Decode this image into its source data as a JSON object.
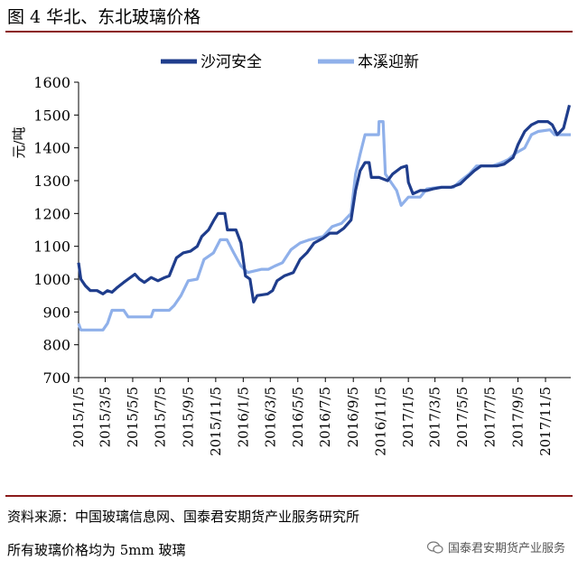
{
  "figure": {
    "title": "图 4 华北、东北玻璃价格",
    "source_note": "资料来源：中国玻璃信息网、国泰君安期货产业服务研究所",
    "spec_note": "所有玻璃价格均为 5mm 玻璃",
    "watermark": "国泰君安期货产业服务"
  },
  "colors": {
    "accent_rule": "#8b1a1a",
    "series_shahe": "#1f3d8c",
    "series_benxi": "#8fb0ea"
  },
  "chart_data": {
    "type": "line",
    "ylabel": "元/吨",
    "ylim": [
      700,
      1600
    ],
    "yticks": [
      700,
      800,
      900,
      1000,
      1100,
      1200,
      1300,
      1400,
      1500,
      1600
    ],
    "xlim": [
      "2015-01-05",
      "2017-12-31"
    ],
    "xticks": [
      "2015/1/5",
      "2015/3/5",
      "2015/5/5",
      "2015/7/5",
      "2015/9/5",
      "2015/11/5",
      "2016/1/5",
      "2016/3/5",
      "2016/5/5",
      "2016/7/5",
      "2016/9/5",
      "2016/11/5",
      "2017/1/5",
      "2017/3/5",
      "2017/5/5",
      "2017/7/5",
      "2017/9/5",
      "2017/11/5"
    ],
    "legend_position": "top",
    "grid": false,
    "series": [
      {
        "name": "沙河安全",
        "points": [
          [
            "2015-01-05",
            1050
          ],
          [
            "2015-01-10",
            1000
          ],
          [
            "2015-01-20",
            980
          ],
          [
            "2015-01-31",
            965
          ],
          [
            "2015-02-15",
            965
          ],
          [
            "2015-02-28",
            955
          ],
          [
            "2015-03-10",
            965
          ],
          [
            "2015-03-20",
            960
          ],
          [
            "2015-04-01",
            975
          ],
          [
            "2015-04-15",
            990
          ],
          [
            "2015-04-25",
            1000
          ],
          [
            "2015-05-10",
            1015
          ],
          [
            "2015-05-20",
            1000
          ],
          [
            "2015-05-31",
            990
          ],
          [
            "2015-06-15",
            1005
          ],
          [
            "2015-06-30",
            995
          ],
          [
            "2015-07-15",
            1005
          ],
          [
            "2015-07-25",
            1010
          ],
          [
            "2015-08-10",
            1065
          ],
          [
            "2015-08-25",
            1080
          ],
          [
            "2015-09-10",
            1085
          ],
          [
            "2015-09-25",
            1100
          ],
          [
            "2015-10-05",
            1130
          ],
          [
            "2015-10-20",
            1150
          ],
          [
            "2015-11-01",
            1180
          ],
          [
            "2015-11-10",
            1200
          ],
          [
            "2015-11-25",
            1200
          ],
          [
            "2015-12-01",
            1150
          ],
          [
            "2015-12-20",
            1150
          ],
          [
            "2015-12-31",
            1110
          ],
          [
            "2016-01-10",
            1010
          ],
          [
            "2016-01-20",
            1000
          ],
          [
            "2016-01-28",
            930
          ],
          [
            "2016-02-05",
            950
          ],
          [
            "2016-02-28",
            955
          ],
          [
            "2016-03-10",
            965
          ],
          [
            "2016-03-20",
            995
          ],
          [
            "2016-04-05",
            1010
          ],
          [
            "2016-04-25",
            1020
          ],
          [
            "2016-05-10",
            1060
          ],
          [
            "2016-05-25",
            1080
          ],
          [
            "2016-06-10",
            1110
          ],
          [
            "2016-06-30",
            1125
          ],
          [
            "2016-07-15",
            1140
          ],
          [
            "2016-07-31",
            1140
          ],
          [
            "2016-08-15",
            1155
          ],
          [
            "2016-08-31",
            1180
          ],
          [
            "2016-09-10",
            1270
          ],
          [
            "2016-09-20",
            1330
          ],
          [
            "2016-10-01",
            1355
          ],
          [
            "2016-10-10",
            1355
          ],
          [
            "2016-10-15",
            1310
          ],
          [
            "2016-11-01",
            1310
          ],
          [
            "2016-11-20",
            1300
          ],
          [
            "2016-12-01",
            1320
          ],
          [
            "2016-12-20",
            1340
          ],
          [
            "2017-01-01",
            1345
          ],
          [
            "2017-01-05",
            1295
          ],
          [
            "2017-01-15",
            1260
          ],
          [
            "2017-01-31",
            1270
          ],
          [
            "2017-02-15",
            1270
          ],
          [
            "2017-03-01",
            1275
          ],
          [
            "2017-03-20",
            1280
          ],
          [
            "2017-04-10",
            1280
          ],
          [
            "2017-04-30",
            1290
          ],
          [
            "2017-05-15",
            1310
          ],
          [
            "2017-05-31",
            1330
          ],
          [
            "2017-06-15",
            1345
          ],
          [
            "2017-07-01",
            1345
          ],
          [
            "2017-07-20",
            1345
          ],
          [
            "2017-08-05",
            1350
          ],
          [
            "2017-08-25",
            1370
          ],
          [
            "2017-09-05",
            1410
          ],
          [
            "2017-09-20",
            1450
          ],
          [
            "2017-10-05",
            1470
          ],
          [
            "2017-10-20",
            1480
          ],
          [
            "2017-11-10",
            1480
          ],
          [
            "2017-11-20",
            1470
          ],
          [
            "2017-12-01",
            1440
          ],
          [
            "2017-12-15",
            1460
          ],
          [
            "2017-12-28",
            1530
          ]
        ]
      },
      {
        "name": "本溪迎新",
        "points": [
          [
            "2015-01-05",
            865
          ],
          [
            "2015-01-10",
            845
          ],
          [
            "2015-02-28",
            845
          ],
          [
            "2015-03-10",
            865
          ],
          [
            "2015-03-20",
            905
          ],
          [
            "2015-04-15",
            905
          ],
          [
            "2015-04-25",
            885
          ],
          [
            "2015-06-15",
            885
          ],
          [
            "2015-06-20",
            905
          ],
          [
            "2015-07-25",
            905
          ],
          [
            "2015-08-05",
            920
          ],
          [
            "2015-08-20",
            950
          ],
          [
            "2015-09-05",
            995
          ],
          [
            "2015-09-25",
            1000
          ],
          [
            "2015-10-10",
            1060
          ],
          [
            "2015-10-31",
            1080
          ],
          [
            "2015-11-15",
            1120
          ],
          [
            "2015-11-30",
            1120
          ],
          [
            "2015-12-15",
            1080
          ],
          [
            "2015-12-31",
            1040
          ],
          [
            "2016-01-15",
            1020
          ],
          [
            "2016-02-15",
            1030
          ],
          [
            "2016-03-01",
            1030
          ],
          [
            "2016-03-15",
            1040
          ],
          [
            "2016-04-01",
            1050
          ],
          [
            "2016-04-20",
            1090
          ],
          [
            "2016-05-10",
            1110
          ],
          [
            "2016-05-31",
            1120
          ],
          [
            "2016-06-30",
            1130
          ],
          [
            "2016-07-20",
            1160
          ],
          [
            "2016-08-10",
            1170
          ],
          [
            "2016-08-31",
            1200
          ],
          [
            "2016-09-10",
            1320
          ],
          [
            "2016-09-20",
            1380
          ],
          [
            "2016-10-01",
            1440
          ],
          [
            "2016-10-31",
            1440
          ],
          [
            "2016-11-01",
            1480
          ],
          [
            "2016-11-10",
            1480
          ],
          [
            "2016-11-15",
            1320
          ],
          [
            "2016-11-30",
            1290
          ],
          [
            "2016-12-10",
            1270
          ],
          [
            "2016-12-20",
            1225
          ],
          [
            "2017-01-05",
            1250
          ],
          [
            "2017-01-31",
            1250
          ],
          [
            "2017-02-15",
            1275
          ],
          [
            "2017-03-15",
            1280
          ],
          [
            "2017-04-15",
            1280
          ],
          [
            "2017-05-01",
            1300
          ],
          [
            "2017-05-20",
            1320
          ],
          [
            "2017-06-05",
            1345
          ],
          [
            "2017-07-10",
            1345
          ],
          [
            "2017-07-31",
            1355
          ],
          [
            "2017-08-15",
            1365
          ],
          [
            "2017-09-01",
            1385
          ],
          [
            "2017-09-20",
            1400
          ],
          [
            "2017-10-05",
            1440
          ],
          [
            "2017-10-20",
            1450
          ],
          [
            "2017-11-15",
            1455
          ],
          [
            "2017-11-25",
            1440
          ],
          [
            "2017-12-31",
            1440
          ]
        ]
      }
    ]
  }
}
